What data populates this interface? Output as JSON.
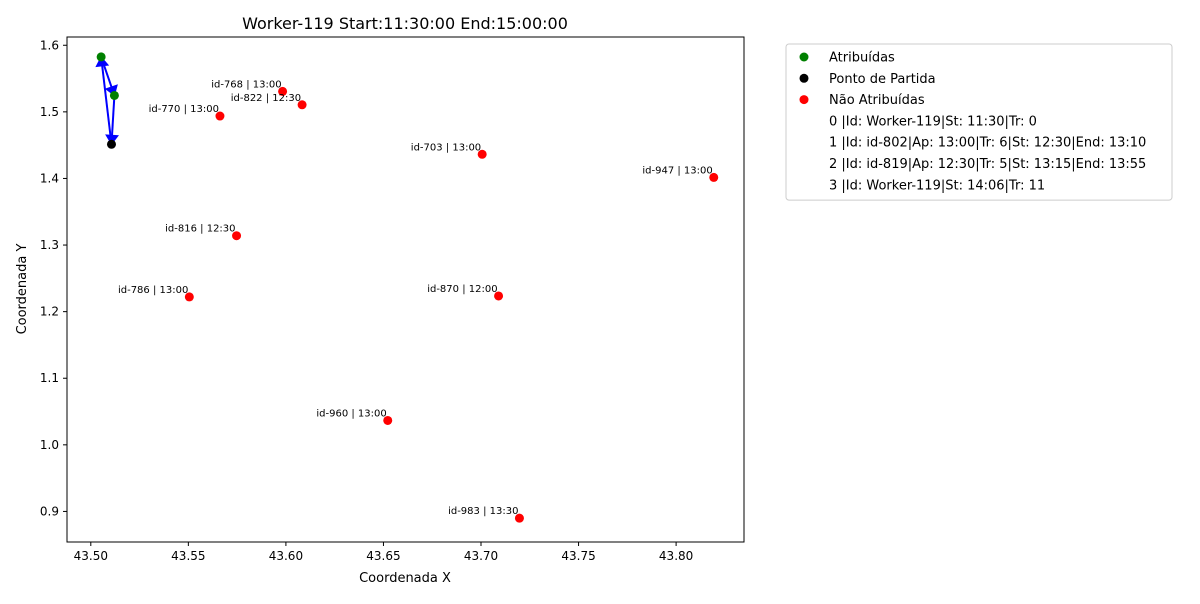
{
  "chart_data": {
    "type": "scatter",
    "title": "Worker-119 Start:11:30:00 End:15:00:00",
    "xlabel": "Coordenada X",
    "ylabel": "Coordenada Y",
    "xlim": [
      43.4878,
      43.8348
    ],
    "ylim": [
      0.8541,
      1.6124
    ],
    "xticks": [
      "43.50",
      "43.55",
      "43.60",
      "43.65",
      "43.70",
      "43.75",
      "43.80"
    ],
    "yticks": [
      "0.9",
      "1.0",
      "1.1",
      "1.2",
      "1.3",
      "1.4",
      "1.5",
      "1.6"
    ],
    "grid": false,
    "legend_position": "outside-right-top",
    "colors": {
      "assigned": "#008000",
      "start": "#000000",
      "unassigned": "#ff0000",
      "route": "#0000ff"
    },
    "series": [
      {
        "name": "Atribuídas",
        "color_key": "assigned",
        "points": [
          {
            "x": 43.5053,
            "y": 1.5825
          },
          {
            "x": 43.5121,
            "y": 1.5246
          }
        ]
      },
      {
        "name": "Ponto de Partida",
        "color_key": "start",
        "points": [
          {
            "x": 43.5106,
            "y": 1.4513
          }
        ]
      },
      {
        "name": "Não Atribuídas",
        "color_key": "unassigned",
        "points": [
          {
            "x": 43.5983,
            "y": 1.5307,
            "label": "id-768 | 13:00"
          },
          {
            "x": 43.6083,
            "y": 1.5106,
            "label": "id-822 | 12:30"
          },
          {
            "x": 43.5662,
            "y": 1.4937,
            "label": "id-770 | 13:00"
          },
          {
            "x": 43.7006,
            "y": 1.4363,
            "label": "id-703 | 13:00"
          },
          {
            "x": 43.8193,
            "y": 1.4016,
            "label": "id-947 | 13:00"
          },
          {
            "x": 43.5747,
            "y": 1.314,
            "label": "id-816 | 12:30"
          },
          {
            "x": 43.5505,
            "y": 1.2221,
            "label": "id-786 | 13:00"
          },
          {
            "x": 43.709,
            "y": 1.2235,
            "label": "id-870 | 12:00"
          },
          {
            "x": 43.6522,
            "y": 1.0366,
            "label": "id-960 | 13:00"
          },
          {
            "x": 43.7197,
            "y": 0.8899,
            "label": "id-983 | 13:30"
          }
        ]
      }
    ],
    "route": [
      {
        "x": 43.5106,
        "y": 1.4513
      },
      {
        "x": 43.5053,
        "y": 1.5825
      },
      {
        "x": 43.5121,
        "y": 1.5246
      },
      {
        "x": 43.5106,
        "y": 1.4513
      }
    ],
    "legend_entries": [
      "0 |Id: Worker-119|St: 11:30|Tr: 0",
      "1 |Id: id-802|Ap: 13:00|Tr: 6|St: 12:30|End: 13:10",
      "2 |Id: id-819|Ap: 12:30|Tr: 5|St: 13:15|End: 13:55",
      "3 |Id: Worker-119|St: 14:06|Tr: 11"
    ]
  }
}
